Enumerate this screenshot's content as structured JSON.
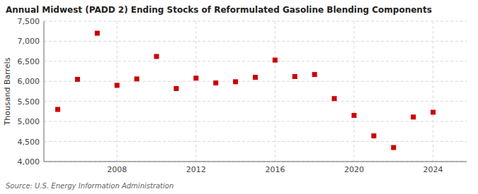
{
  "chart_data": {
    "type": "scatter",
    "title": "Annual Midwest (PADD 2) Ending Stocks of Reformulated Gasoline Blending Components",
    "ylabel": "Thousand Barrels",
    "annotations": [
      "Source: U.S. Energy Information Administration"
    ],
    "x": [
      2005,
      2006,
      2007,
      2008,
      2009,
      2010,
      2011,
      2012,
      2013,
      2014,
      2015,
      2016,
      2017,
      2018,
      2019,
      2020,
      2021,
      2022,
      2023,
      2024
    ],
    "values": [
      5300,
      6050,
      7200,
      5900,
      6060,
      6620,
      5820,
      6080,
      5960,
      5990,
      6100,
      6530,
      6120,
      6170,
      5570,
      5150,
      4640,
      4350,
      5110,
      5230
    ],
    "color": "#cc0000",
    "marker": "square",
    "xlim": [
      2004.3,
      2025.7
    ],
    "xticks": [
      2008,
      2012,
      2016,
      2020,
      2024
    ],
    "ylim": [
      4000,
      7500
    ],
    "yticks": [
      {
        "value": 4000,
        "label": "4,000"
      },
      {
        "value": 4500,
        "label": "4,500"
      },
      {
        "value": 5000,
        "label": "5,000"
      },
      {
        "value": 5500,
        "label": "5,500"
      },
      {
        "value": 6000,
        "label": "6,000"
      },
      {
        "value": 6500,
        "label": "6,500"
      },
      {
        "value": 7000,
        "label": "7,000"
      },
      {
        "value": 7500,
        "label": "7,500"
      }
    ],
    "grid": true
  }
}
